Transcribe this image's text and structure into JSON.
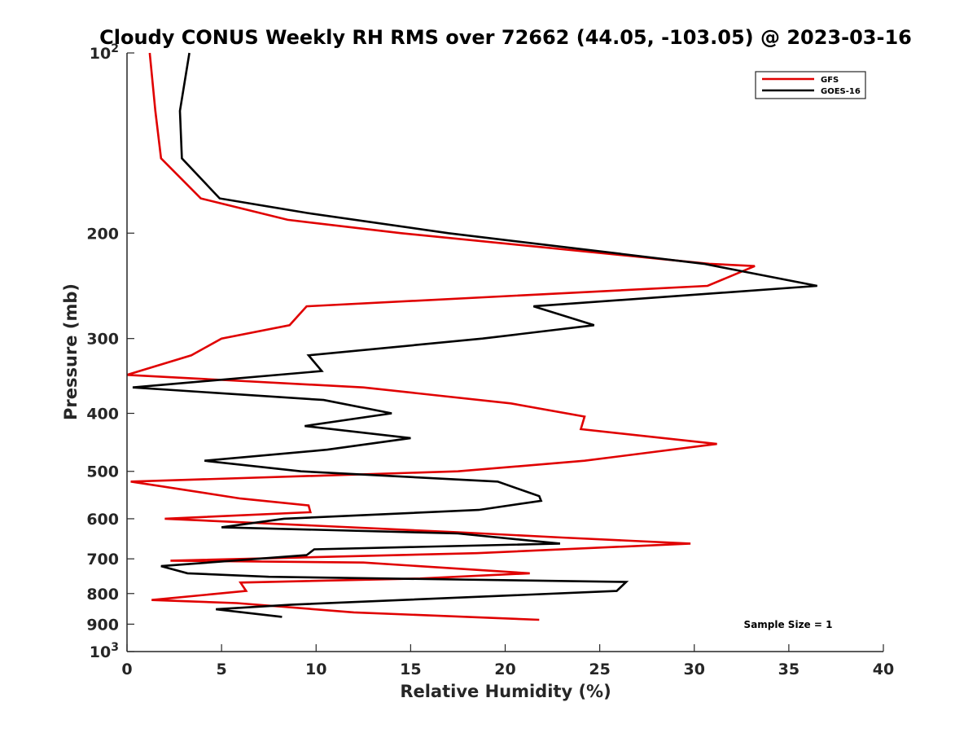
{
  "chart_data": {
    "type": "line",
    "title": "Cloudy CONUS Weekly RH RMS over 72662 (44.05, -103.05) @ 2023-03-16",
    "xlabel": "Relative Humidity (%)",
    "ylabel": "Pressure (mb)",
    "xlim": [
      0,
      40
    ],
    "ylim": [
      100,
      1000
    ],
    "y_scale": "log",
    "y_reversed": true,
    "grid": false,
    "legend_position": "top-right",
    "annotation": "Sample Size = 1",
    "x_ticks": [
      "0",
      "5",
      "10",
      "15",
      "20",
      "25",
      "30",
      "35",
      "40"
    ],
    "y_ticks": [
      {
        "value": 200,
        "label": "200"
      },
      {
        "value": 300,
        "label": "300"
      },
      {
        "value": 400,
        "label": "400"
      },
      {
        "value": 500,
        "label": "500"
      },
      {
        "value": 600,
        "label": "600"
      },
      {
        "value": 700,
        "label": "700"
      },
      {
        "value": 800,
        "label": "800"
      },
      {
        "value": 900,
        "label": "900"
      }
    ],
    "y_tick_power_top": {
      "base": "10",
      "exp": "2",
      "value": 100
    },
    "y_tick_power_bottom": {
      "base": "10",
      "exp": "3",
      "value": 1000
    },
    "series": [
      {
        "name": "GFS",
        "color": "#e00000",
        "points": [
          [
            1.2,
            100
          ],
          [
            1.5,
            125
          ],
          [
            1.8,
            150
          ],
          [
            3.9,
            175
          ],
          [
            8.5,
            190
          ],
          [
            14.5,
            200
          ],
          [
            30.8,
            225
          ],
          [
            33.2,
            227
          ],
          [
            30.7,
            245
          ],
          [
            9.5,
            265
          ],
          [
            8.6,
            285
          ],
          [
            5.0,
            300
          ],
          [
            3.4,
            320
          ],
          [
            0.0,
            345
          ],
          [
            12.5,
            362
          ],
          [
            20.3,
            385
          ],
          [
            24.2,
            405
          ],
          [
            24.0,
            425
          ],
          [
            31.2,
            450
          ],
          [
            24.2,
            480
          ],
          [
            17.5,
            500
          ],
          [
            0.2,
            520
          ],
          [
            6.0,
            555
          ],
          [
            9.6,
            570
          ],
          [
            9.7,
            585
          ],
          [
            2.0,
            600
          ],
          [
            17.5,
            632
          ],
          [
            23.0,
            645
          ],
          [
            29.8,
            660
          ],
          [
            18.5,
            685
          ],
          [
            2.3,
            705
          ],
          [
            12.5,
            710
          ],
          [
            21.3,
            740
          ],
          [
            15.5,
            755
          ],
          [
            6.0,
            767
          ],
          [
            6.3,
            792
          ],
          [
            1.3,
            820
          ],
          [
            5.8,
            830
          ],
          [
            12.0,
            860
          ],
          [
            21.8,
            885
          ]
        ]
      },
      {
        "name": "GOES-16",
        "color": "#000000",
        "points": [
          [
            3.3,
            100
          ],
          [
            2.8,
            125
          ],
          [
            2.9,
            150
          ],
          [
            4.9,
            175
          ],
          [
            9.5,
            185
          ],
          [
            17.0,
            200
          ],
          [
            30.5,
            225
          ],
          [
            36.5,
            245
          ],
          [
            21.5,
            265
          ],
          [
            24.7,
            285
          ],
          [
            18.8,
            300
          ],
          [
            9.6,
            320
          ],
          [
            10.3,
            340
          ],
          [
            0.3,
            362
          ],
          [
            10.4,
            380
          ],
          [
            14.0,
            400
          ],
          [
            9.4,
            420
          ],
          [
            15.0,
            440
          ],
          [
            10.6,
            460
          ],
          [
            4.1,
            480
          ],
          [
            9.2,
            500
          ],
          [
            19.6,
            520
          ],
          [
            21.8,
            550
          ],
          [
            21.9,
            560
          ],
          [
            18.6,
            580
          ],
          [
            8.3,
            600
          ],
          [
            5.0,
            620
          ],
          [
            17.5,
            635
          ],
          [
            22.9,
            660
          ],
          [
            9.9,
            675
          ],
          [
            9.5,
            690
          ],
          [
            1.8,
            720
          ],
          [
            3.2,
            740
          ],
          [
            7.5,
            750
          ],
          [
            26.4,
            765
          ],
          [
            25.9,
            792
          ],
          [
            8.7,
            835
          ],
          [
            4.7,
            850
          ],
          [
            8.2,
            875
          ]
        ]
      }
    ]
  }
}
